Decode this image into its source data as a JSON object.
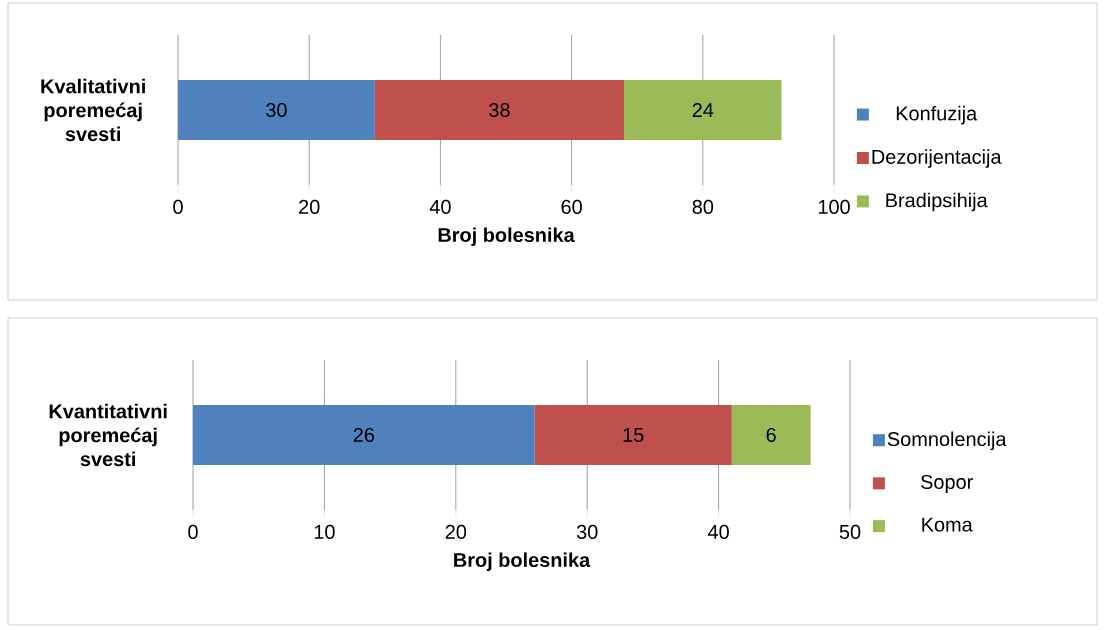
{
  "chart_data": [
    {
      "type": "bar",
      "orientation": "horizontal",
      "stacked": true,
      "categories": [
        "Kvalitativni poremećaj svesti"
      ],
      "xlabel": "Broj bolesnika",
      "xlim": [
        0,
        100
      ],
      "xticks": [
        0,
        20,
        40,
        60,
        80,
        100
      ],
      "grid": "x",
      "legend": "right",
      "data_labels": true,
      "series": [
        {
          "name": "Konfuzija",
          "color": "#4f81bd",
          "values": [
            30
          ]
        },
        {
          "name": "Dezorijentacija",
          "color": "#c0504d",
          "values": [
            38
          ]
        },
        {
          "name": "Bradipsihija",
          "color": "#9bbb59",
          "values": [
            24
          ]
        }
      ]
    },
    {
      "type": "bar",
      "orientation": "horizontal",
      "stacked": true,
      "categories": [
        "Kvantitativni poremećaj svesti"
      ],
      "xlabel": "Broj bolesnika",
      "xlim": [
        0,
        50
      ],
      "xticks": [
        0,
        10,
        20,
        30,
        40,
        50
      ],
      "grid": "x",
      "legend": "right",
      "data_labels": true,
      "series": [
        {
          "name": "Somnolencija",
          "color": "#4f81bd",
          "values": [
            26
          ]
        },
        {
          "name": "Sopor",
          "color": "#c0504d",
          "values": [
            15
          ]
        },
        {
          "name": "Koma",
          "color": "#9bbb59",
          "values": [
            6
          ]
        }
      ]
    }
  ]
}
